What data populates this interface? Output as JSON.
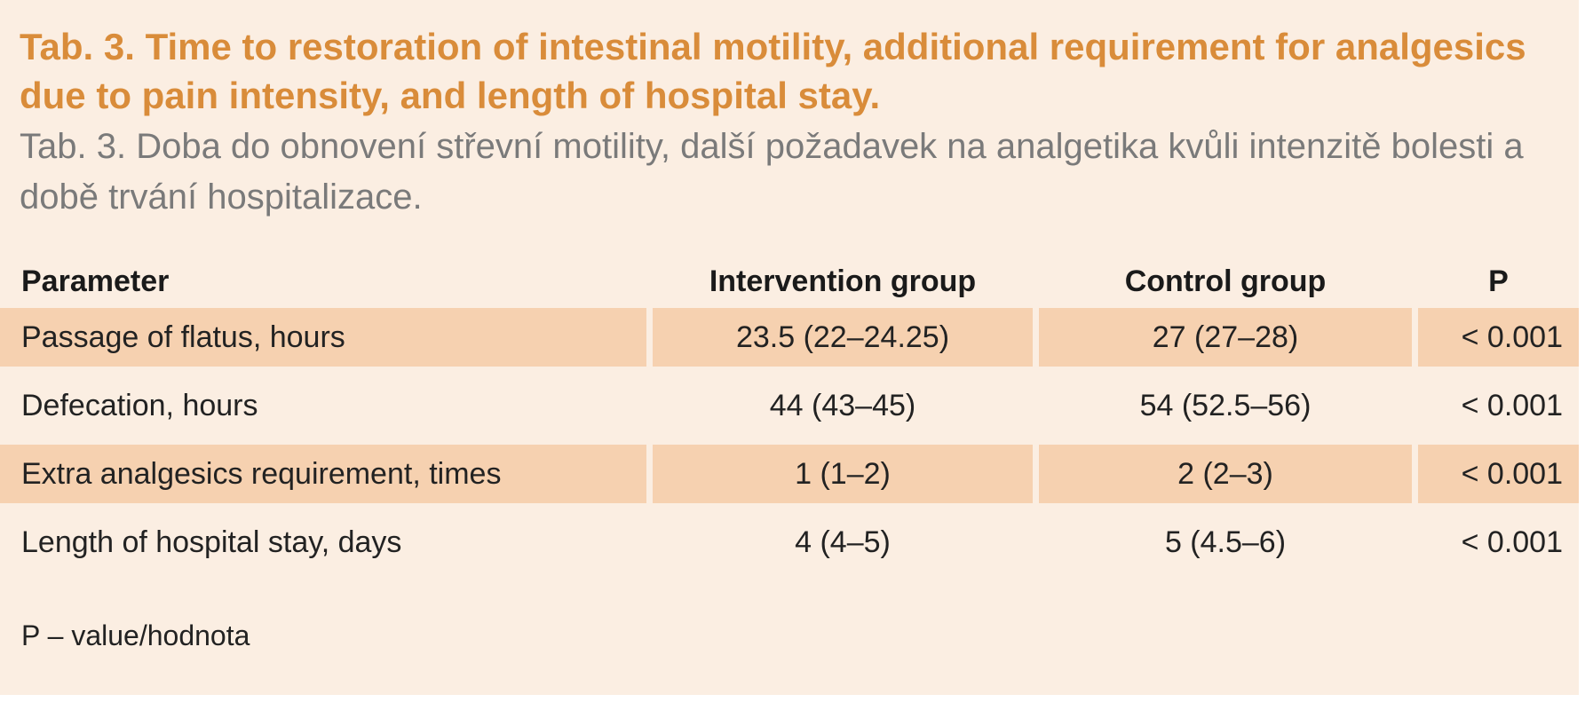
{
  "table": {
    "title_en": "Tab. 3. Time to restoration of intestinal motility, additional requirement for analgesics due to pain intensity, and length of hospital stay.",
    "title_cz": "Tab. 3. Doba do obnovení střevní motility, další požadavek na analgetika kvůli intenzitě bolesti a době trvání hospitalizace.",
    "headers": {
      "parameter": "Parameter",
      "intervention": "Intervention group",
      "control": "Control group",
      "p": "P"
    },
    "rows": [
      {
        "parameter": "Passage of flatus, hours",
        "intervention": "23.5 (22–24.25)",
        "control": "27 (27–28)",
        "p": "< 0.001"
      },
      {
        "parameter": "Defecation, hours",
        "intervention": "44 (43–45)",
        "control": "54 (52.5–56)",
        "p": "< 0.001"
      },
      {
        "parameter": "Extra analgesics requirement, times",
        "intervention": "1 (1–2)",
        "control": "2 (2–3)",
        "p": "< 0.001"
      },
      {
        "parameter": "Length of hospital stay, days",
        "intervention": "4 (4–5)",
        "control": "5 (4.5–6)",
        "p": "< 0.001"
      }
    ],
    "footnote": "P – value/hodnota"
  },
  "colors": {
    "panel_background": "#fbeee2",
    "row_shade": "#f6d1b0",
    "title_en": "#d98c3a",
    "title_cz": "#7a7a7a"
  }
}
